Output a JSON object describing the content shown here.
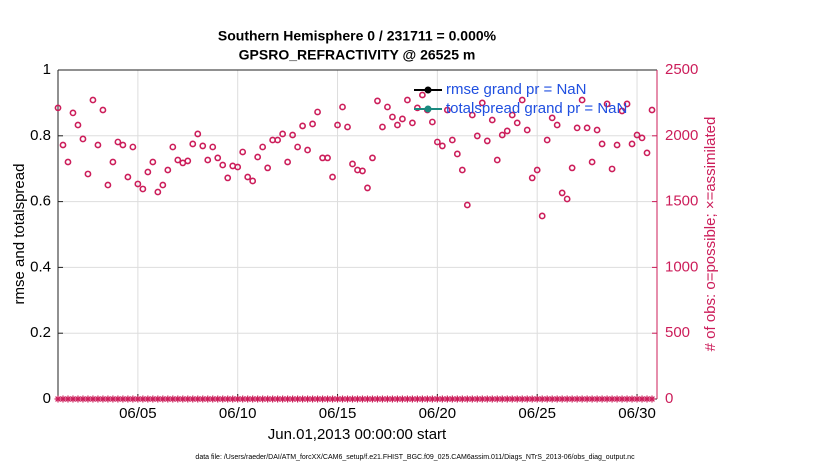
{
  "chart_data": {
    "type": "scatter",
    "title": "Southern Hemisphere 0 / 231711 = 0.000%",
    "subtitle": "GPSRO_REFRACTIVITY @ 26525 m",
    "xlabel": "Jun.01,2013 00:00:00 start",
    "ylabel": "rmse and totalspread",
    "y2label": "# of obs: o=possible; ×=assimilated",
    "footnote": "data file: /Users/raeder/DAI/ATM_forcXX/CAM6_setup/f.e21.FHIST_BGC.f09_025.CAM6assim.011/Diags_NTrS_2013-06/obs_diag_output.nc",
    "xlim": [
      0,
      30
    ],
    "xticks": [
      {
        "value": 4,
        "label": "06/05"
      },
      {
        "value": 9,
        "label": "06/10"
      },
      {
        "value": 14,
        "label": "06/15"
      },
      {
        "value": 19,
        "label": "06/20"
      },
      {
        "value": 24,
        "label": "06/25"
      },
      {
        "value": 29,
        "label": "06/30"
      }
    ],
    "ylim": [
      0,
      1
    ],
    "yticks": [
      0,
      0.2,
      0.4,
      0.6,
      0.8,
      1
    ],
    "y2lim": [
      0,
      2500
    ],
    "y2ticks": [
      0,
      500,
      1000,
      1500,
      2000,
      2500
    ],
    "grid": true,
    "legend": "northeast",
    "x": [
      0,
      0.25,
      0.5,
      0.75,
      1,
      1.25,
      1.5,
      1.75,
      2,
      2.25,
      2.5,
      2.75,
      3,
      3.25,
      3.5,
      3.75,
      4,
      4.25,
      4.5,
      4.75,
      5,
      5.25,
      5.5,
      5.75,
      6,
      6.25,
      6.5,
      6.75,
      7,
      7.25,
      7.5,
      7.75,
      8,
      8.25,
      8.5,
      8.75,
      9,
      9.25,
      9.5,
      9.75,
      10,
      10.25,
      10.5,
      10.75,
      11,
      11.25,
      11.5,
      11.75,
      12,
      12.25,
      12.5,
      12.75,
      13,
      13.25,
      13.5,
      13.75,
      14,
      14.25,
      14.5,
      14.75,
      15,
      15.25,
      15.5,
      15.75,
      16,
      16.25,
      16.5,
      16.75,
      17,
      17.25,
      17.5,
      17.75,
      18,
      18.25,
      18.5,
      18.75,
      19,
      19.25,
      19.5,
      19.75,
      20,
      20.25,
      20.5,
      20.75,
      21,
      21.25,
      21.5,
      21.75,
      22,
      22.25,
      22.5,
      22.75,
      23,
      23.25,
      23.5,
      23.75,
      24,
      24.25,
      24.5,
      24.75,
      25,
      25.25,
      25.5,
      25.75,
      26,
      26.25,
      26.5,
      26.75,
      27,
      27.25,
      27.5,
      27.75,
      28,
      28.25,
      28.5,
      28.75,
      29,
      29.25,
      29.5,
      29.75
    ],
    "series": [
      {
        "name": "rmse grand pr = NaN",
        "color": "#000000",
        "marker": "dot",
        "values": []
      },
      {
        "name": "totalspread grand pr = NaN",
        "color": "#1a8a80",
        "marker": "dot",
        "values": []
      },
      {
        "color": "#cc1d5a",
        "axis": "y2",
        "marker": "circle",
        "values": [
          2212,
          1930,
          1801,
          2174,
          2082,
          1976,
          1710,
          2272,
          1930,
          2196,
          1626,
          1801,
          1953,
          1930,
          1687,
          1915,
          1634,
          1596,
          1725,
          1801,
          1573,
          1626,
          1740,
          1915,
          1816,
          1794,
          1809,
          1938,
          2014,
          1923,
          1816,
          1915,
          1832,
          1778,
          1680,
          1771,
          1763,
          1877,
          1687,
          1657,
          1839,
          1915,
          1756,
          1968,
          1968,
          2014,
          1801,
          2006,
          1915,
          2075,
          1892,
          2090,
          2181,
          1832,
          1832,
          1687,
          2082,
          2219,
          2067,
          1786,
          1740,
          1733,
          1604,
          1832,
          2265,
          2067,
          2219,
          2143,
          2082,
          2128,
          2272,
          2098,
          2212,
          2310,
          2196,
          2105,
          1953,
          1923,
          2196,
          1968,
          1862,
          1740,
          1474,
          2158,
          1999,
          2250,
          1961,
          2120,
          1816,
          2006,
          2037,
          2158,
          2098,
          2272,
          2044,
          1680,
          1740,
          1391,
          1968,
          2136,
          2082,
          1566,
          1520,
          1756,
          2060,
          2272,
          2060,
          1801,
          2044,
          1938,
          2242,
          1748,
          1930,
          2189,
          2242,
          1938,
          2006,
          1984,
          1870,
          2196
        ]
      },
      {
        "color": "#cc1d5a",
        "axis": "y2",
        "marker": "star",
        "values": [
          0,
          0,
          0,
          0,
          0,
          0,
          0,
          0,
          0,
          0,
          0,
          0,
          0,
          0,
          0,
          0,
          0,
          0,
          0,
          0,
          0,
          0,
          0,
          0,
          0,
          0,
          0,
          0,
          0,
          0,
          0,
          0,
          0,
          0,
          0,
          0,
          0,
          0,
          0,
          0,
          0,
          0,
          0,
          0,
          0,
          0,
          0,
          0,
          0,
          0,
          0,
          0,
          0,
          0,
          0,
          0,
          0,
          0,
          0,
          0,
          0,
          0,
          0,
          0,
          0,
          0,
          0,
          0,
          0,
          0,
          0,
          0,
          0,
          0,
          0,
          0,
          0,
          0,
          0,
          0,
          0,
          0,
          0,
          0,
          0,
          0,
          0,
          0,
          0,
          0,
          0,
          0,
          0,
          0,
          0,
          0,
          0,
          0,
          0,
          0,
          0,
          0,
          0,
          0,
          0,
          0,
          0,
          0,
          0,
          0,
          0,
          0,
          0,
          0,
          0,
          0,
          0,
          0,
          0,
          0
        ]
      }
    ]
  }
}
